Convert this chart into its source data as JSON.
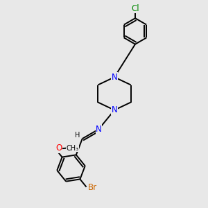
{
  "bg": "#e8e8e8",
  "black": "#000000",
  "blue": "#0000ff",
  "red": "#ff0000",
  "orange": "#cc6600",
  "green": "#008800",
  "lw": 1.4,
  "fs_label": 8.5,
  "fig_w": 3.0,
  "fig_h": 3.0,
  "dpi": 100,
  "xlim": [
    0,
    10
  ],
  "ylim": [
    0,
    12
  ]
}
